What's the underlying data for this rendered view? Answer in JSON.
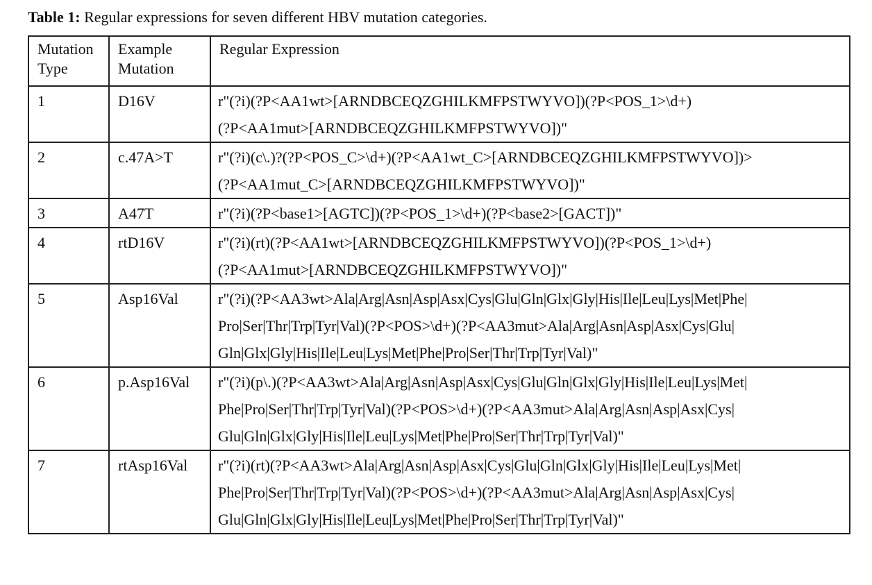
{
  "caption": {
    "label": "Table 1:",
    "text": " Regular expressions for seven different HBV mutation categories."
  },
  "table": {
    "headers": {
      "type_line1": "Mutation",
      "type_line2": "Type",
      "example_line1": "Example",
      "example_line2": "Mutation",
      "regex": "Regular Expression"
    },
    "rows": [
      {
        "type": "1",
        "example": "D16V",
        "regex_lines": [
          "r\"(?i)(?P<AA1wt>[ARNDBCEQZGHILKMFPSTWYVO])(?P<POS_1>\\d+)",
          "(?P<AA1mut>[ARNDBCEQZGHILKMFPSTWYVO])\""
        ]
      },
      {
        "type": "2",
        "example": "c.47A>T",
        "regex_lines": [
          "r\"(?i)(c\\.)?(?P<POS_C>\\d+)(?P<AA1wt_C>[ARNDBCEQZGHILKMFPSTWYVO])>",
          "(?P<AA1mut_C>[ARNDBCEQZGHILKMFPSTWYVO])\""
        ]
      },
      {
        "type": "3",
        "example": "A47T",
        "regex_lines": [
          "r\"(?i)(?P<base1>[AGTC])(?P<POS_1>\\d+)(?P<base2>[GACT])\""
        ]
      },
      {
        "type": "4",
        "example": "rtD16V",
        "regex_lines": [
          "r\"(?i)(rt)(?P<AA1wt>[ARNDBCEQZGHILKMFPSTWYVO])(?P<POS_1>\\d+)",
          "(?P<AA1mut>[ARNDBCEQZGHILKMFPSTWYVO])\""
        ]
      },
      {
        "type": "5",
        "example": "Asp16Val",
        "regex_lines": [
          "r\"(?i)(?P<AA3wt>Ala|Arg|Asn|Asp|Asx|Cys|Glu|Gln|Glx|Gly|His|Ile|Leu|Lys|Met|Phe|",
          "Pro|Ser|Thr|Trp|Tyr|Val)(?P<POS>\\d+)(?P<AA3mut>Ala|Arg|Asn|Asp|Asx|Cys|Glu|",
          "Gln|Glx|Gly|His|Ile|Leu|Lys|Met|Phe|Pro|Ser|Thr|Trp|Tyr|Val)\""
        ]
      },
      {
        "type": "6",
        "example": "p.Asp16Val",
        "regex_lines": [
          "r\"(?i)(p\\.)(?P<AA3wt>Ala|Arg|Asn|Asp|Asx|Cys|Glu|Gln|Glx|Gly|His|Ile|Leu|Lys|Met|",
          "Phe|Pro|Ser|Thr|Trp|Tyr|Val)(?P<POS>\\d+)(?P<AA3mut>Ala|Arg|Asn|Asp|Asx|Cys|",
          "Glu|Gln|Glx|Gly|His|Ile|Leu|Lys|Met|Phe|Pro|Ser|Thr|Trp|Tyr|Val)\""
        ]
      },
      {
        "type": "7",
        "example": "rtAsp16Val",
        "regex_lines": [
          "r\"(?i)(rt)(?P<AA3wt>Ala|Arg|Asn|Asp|Asx|Cys|Glu|Gln|Glx|Gly|His|Ile|Leu|Lys|Met|",
          "Phe|Pro|Ser|Thr|Trp|Tyr|Val)(?P<POS>\\d+)(?P<AA3mut>Ala|Arg|Asn|Asp|Asx|Cys|",
          "Glu|Gln|Glx|Gly|His|Ile|Leu|Lys|Met|Phe|Pro|Ser|Thr|Trp|Tyr|Val)\""
        ]
      }
    ]
  }
}
